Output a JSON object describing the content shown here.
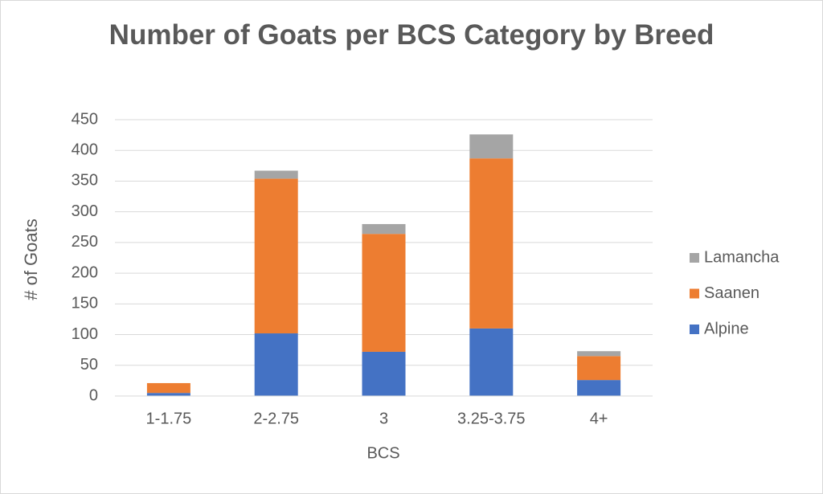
{
  "chart_data": {
    "type": "stacked_bar",
    "title": "Number of Goats per BCS Category by Breed",
    "x_label": "BCS",
    "y_label": "# of Goats",
    "categories": [
      "1-1.75",
      "2-2.75",
      "3",
      "3.25-3.75",
      "4+"
    ],
    "series": [
      {
        "name": "Alpine",
        "color": "#4472c4",
        "values": [
          5,
          102,
          72,
          110,
          26
        ]
      },
      {
        "name": "Saanen",
        "color": "#ed7d31",
        "values": [
          16,
          252,
          192,
          277,
          39
        ]
      },
      {
        "name": "Lamancha",
        "color": "#a5a5a5",
        "values": [
          0,
          13,
          16,
          39,
          8
        ]
      }
    ],
    "ylim": [
      0,
      450
    ],
    "yticks": [
      0,
      50,
      100,
      150,
      200,
      250,
      300,
      350,
      400,
      450
    ],
    "grid": true,
    "legend": "right"
  }
}
